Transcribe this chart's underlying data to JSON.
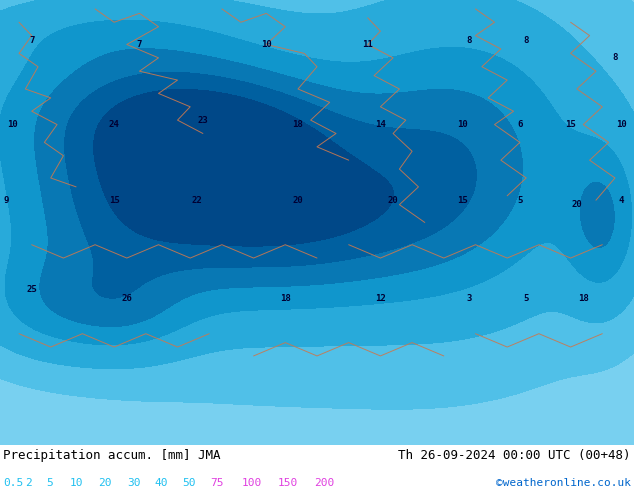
{
  "title_left": "Precipitation accum. [mm] JMA",
  "title_right": "Th 26-09-2024 00:00 UTC (00+48)",
  "credit": "©weatheronline.co.uk",
  "colorbar_levels": [
    0.5,
    2,
    5,
    10,
    20,
    30,
    40,
    50,
    75,
    100,
    150,
    200
  ],
  "colorbar_colors": [
    "#aae8ff",
    "#78d0f0",
    "#50c0e8",
    "#28aada",
    "#1096cc",
    "#0878b4",
    "#0060a0",
    "#004888",
    "#c896e6",
    "#a050d2",
    "#7832be",
    "#5014aa"
  ],
  "level_text_colors": [
    "#20c0f0",
    "#20c0f0",
    "#20c0f0",
    "#20c0f0",
    "#20c0f0",
    "#20c0f0",
    "#20c0f0",
    "#20c0f0",
    "#e040e0",
    "#e040e0",
    "#e040e0",
    "#e040e0"
  ],
  "bg_color": "#55ccf5",
  "bottom_bar_color": "#ffffff",
  "title_font_size": 9,
  "credit_font_size": 8,
  "label_font_size": 8,
  "fig_width": 6.34,
  "fig_height": 4.9,
  "dpi": 100,
  "label_positions": [
    [
      0.5,
      9.1,
      "7"
    ],
    [
      2.2,
      9.0,
      "7"
    ],
    [
      4.2,
      9.0,
      "10"
    ],
    [
      5.8,
      9.0,
      "11"
    ],
    [
      7.4,
      9.1,
      "8"
    ],
    [
      8.3,
      9.1,
      "8"
    ],
    [
      9.7,
      8.7,
      "8"
    ],
    [
      0.2,
      7.2,
      "10"
    ],
    [
      1.8,
      7.2,
      "24"
    ],
    [
      3.2,
      7.3,
      "23"
    ],
    [
      4.7,
      7.2,
      "18"
    ],
    [
      6.0,
      7.2,
      "14"
    ],
    [
      7.3,
      7.2,
      "10"
    ],
    [
      8.2,
      7.2,
      "6"
    ],
    [
      9.0,
      7.2,
      "15"
    ],
    [
      9.8,
      7.2,
      "10"
    ],
    [
      0.1,
      5.5,
      "9"
    ],
    [
      1.8,
      5.5,
      "15"
    ],
    [
      3.1,
      5.5,
      "22"
    ],
    [
      4.7,
      5.5,
      "20"
    ],
    [
      6.2,
      5.5,
      "20"
    ],
    [
      7.3,
      5.5,
      "15"
    ],
    [
      8.2,
      5.5,
      "5"
    ],
    [
      9.1,
      5.4,
      "20"
    ],
    [
      9.8,
      5.5,
      "4"
    ],
    [
      0.5,
      3.5,
      "25"
    ],
    [
      2.0,
      3.3,
      "26"
    ],
    [
      4.5,
      3.3,
      "18"
    ],
    [
      6.0,
      3.3,
      "12"
    ],
    [
      7.4,
      3.3,
      "3"
    ],
    [
      8.3,
      3.3,
      "5"
    ],
    [
      9.2,
      3.3,
      "18"
    ]
  ]
}
